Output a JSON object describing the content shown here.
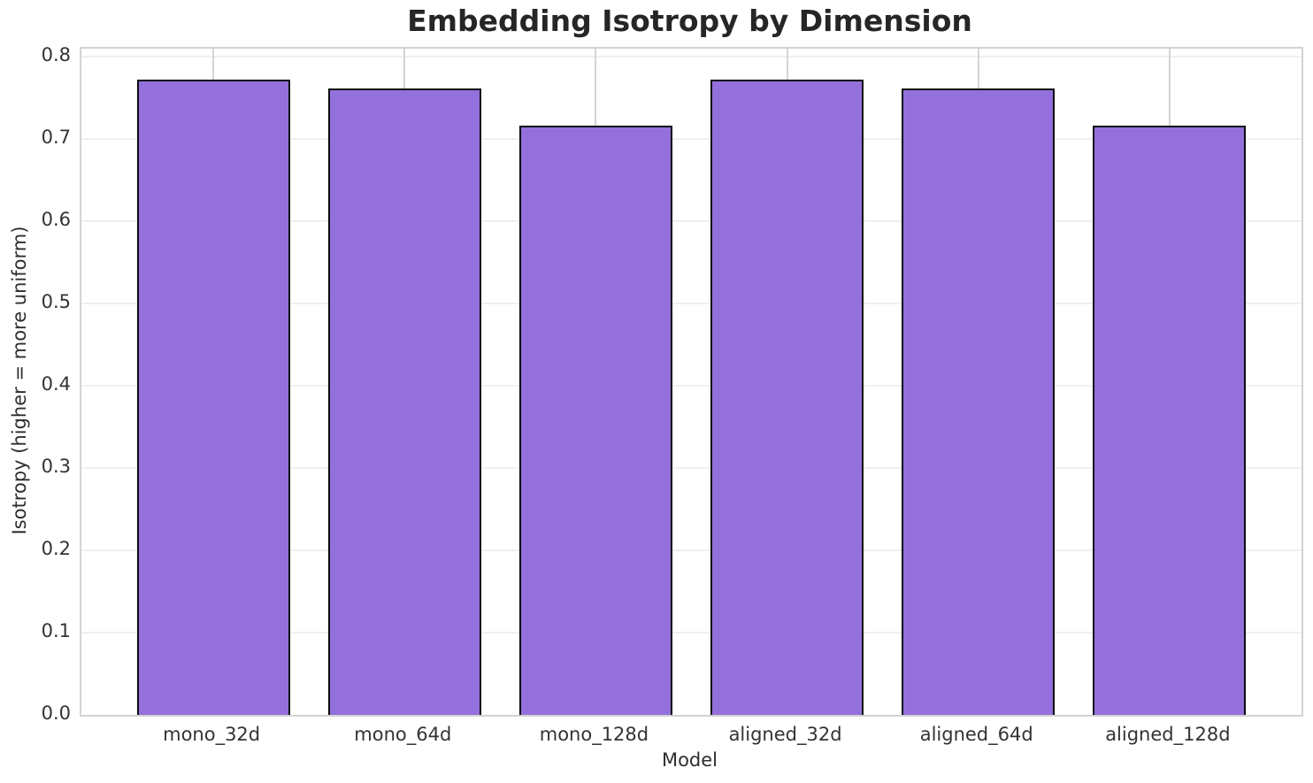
{
  "chart_data": {
    "type": "bar",
    "title": "Embedding Isotropy by Dimension",
    "xlabel": "Model",
    "ylabel": "Isotropy (higher = more uniform)",
    "categories": [
      "mono_32d",
      "mono_64d",
      "mono_128d",
      "aligned_32d",
      "aligned_64d",
      "aligned_128d"
    ],
    "values": [
      0.772,
      0.762,
      0.716,
      0.772,
      0.762,
      0.716
    ],
    "ylim": [
      0,
      0.81
    ],
    "yticks": [
      0.0,
      0.1,
      0.2,
      0.3,
      0.4,
      0.5,
      0.6,
      0.7,
      0.8
    ],
    "grid": true,
    "legend_position": "none",
    "colors": {
      "bar_fill": "#9370DB",
      "bar_edge": "#0d0d0d",
      "h_grid": "#efefef",
      "v_grid": "#d4d4d4",
      "spine": "#d2d2d2",
      "title_text": "#262626",
      "tick_text": "#333333",
      "background": "#ffffff"
    }
  }
}
